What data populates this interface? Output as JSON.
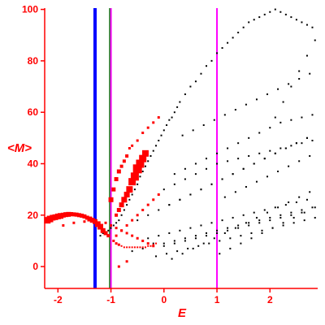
{
  "chart_data": {
    "type": "scatter",
    "xlabel": "E",
    "ylabel": "<M>",
    "xlim": [
      -2.25,
      2.9
    ],
    "ylim": [
      -8.5,
      100.5
    ],
    "x_ticks": [
      -2,
      -1,
      0,
      1,
      2
    ],
    "y_ticks": [
      0,
      20,
      40,
      60,
      80,
      100
    ],
    "grid": false,
    "colors": {
      "axes": "#ff0000",
      "black_points": "#000000",
      "red_markers": "#ff0000",
      "blue_line": "#0000ff",
      "green_line": "#008000",
      "magenta_line": "#ff00ff"
    },
    "vertical_lines": [
      {
        "x": -1.3,
        "color": "#0000ff"
      },
      {
        "x": -1.02,
        "color": "#008000"
      },
      {
        "x": -1.0,
        "color": "#ff00ff"
      },
      {
        "x": 1.0,
        "color": "#ff00ff"
      }
    ],
    "series": [
      {
        "marker": "small black dot",
        "x": [
          -1.2,
          -1.15,
          -1.05,
          -1.0,
          -0.95,
          -0.9,
          -0.85,
          -0.8,
          -0.75,
          -0.7,
          -0.65,
          -0.6,
          -0.55,
          -0.5,
          -0.45,
          -0.4,
          -0.35,
          -0.3,
          -0.25,
          -0.2,
          -0.15,
          -0.1,
          -0.05,
          0.0,
          0.05,
          0.1,
          0.15,
          0.2,
          0.25,
          0.3,
          0.4,
          0.5,
          0.6,
          0.7,
          0.8,
          0.9,
          1.0,
          1.1,
          1.2,
          1.3,
          1.4,
          1.5,
          1.6,
          1.7,
          1.8,
          1.9,
          2.0,
          2.1,
          2.2,
          2.3,
          2.4,
          2.5,
          2.6,
          2.7,
          2.8,
          -0.3,
          -0.1,
          0.1,
          0.3,
          0.5,
          0.7,
          0.9,
          1.1,
          1.3,
          1.5,
          1.7,
          1.9,
          2.1,
          2.3,
          2.5,
          2.7,
          0.0,
          0.2,
          0.4,
          0.6,
          0.8,
          1.0,
          1.2,
          1.4,
          1.6,
          1.8,
          2.0,
          2.2,
          2.4,
          2.6,
          2.8,
          0.2,
          0.4,
          0.6,
          0.8,
          1.0,
          1.2,
          1.4,
          1.6,
          1.8,
          2.0,
          2.2,
          2.4,
          2.6,
          2.8,
          -0.5,
          -0.3,
          -0.1,
          0.1,
          0.3,
          0.5,
          0.7,
          0.9,
          1.1,
          1.3,
          1.5,
          1.7,
          1.9,
          2.1,
          2.3,
          2.5,
          2.7,
          -0.2,
          0.0,
          0.2,
          0.4,
          0.6,
          0.8,
          1.0,
          1.2,
          1.4,
          1.6,
          1.8,
          2.0,
          2.2,
          2.4,
          2.6,
          0.1,
          0.3,
          0.5,
          0.7,
          0.9,
          1.1,
          1.3,
          1.5,
          1.7,
          1.9,
          2.1,
          2.3,
          2.5,
          2.7,
          -0.6,
          -0.4,
          -0.2,
          0.0,
          0.2,
          0.4,
          0.6,
          0.8,
          1.0,
          1.2,
          1.4,
          1.6,
          1.8,
          2.0,
          2.2,
          2.4,
          2.6,
          2.8,
          1.05,
          1.25,
          1.45,
          1.65,
          1.85,
          2.05,
          2.25,
          2.45,
          2.65,
          2.85,
          1.15,
          1.35,
          1.55,
          1.75,
          1.95,
          2.15,
          2.35,
          2.55,
          2.75,
          0.35,
          0.55,
          0.75,
          0.95,
          1.15,
          1.35,
          1.55,
          1.75,
          1.95,
          2.15,
          2.35,
          2.55,
          2.75,
          -0.15,
          0.05,
          0.25,
          0.45,
          0.65,
          0.85,
          1.05,
          1.25,
          1.45,
          1.65,
          1.85,
          2.05,
          2.25,
          2.45,
          2.65,
          2.85,
          0.15,
          0.35,
          0.55,
          0.75,
          0.95,
          1.15,
          1.35,
          1.55,
          1.75,
          1.95,
          2.15,
          2.35,
          2.55,
          2.75,
          2.85,
          2.7,
          2.55,
          2.4,
          2.25,
          2.1
        ],
        "y": [
          12,
          13,
          14,
          15,
          16,
          17,
          18,
          20,
          22,
          24,
          26,
          28,
          30,
          32,
          35,
          37,
          39,
          41,
          43,
          45,
          47,
          49,
          51,
          53,
          55,
          57,
          58,
          60,
          62,
          64,
          67,
          70,
          72,
          75,
          78,
          80,
          83,
          85,
          87,
          89,
          91,
          93,
          95,
          96,
          97,
          98,
          99,
          100,
          99,
          98,
          97,
          96,
          95,
          94,
          93,
          11,
          12,
          13,
          14,
          15,
          16,
          17,
          18,
          19,
          20,
          21,
          22,
          23,
          24,
          25,
          26,
          30,
          32,
          34,
          36,
          38,
          40,
          41,
          42,
          43,
          44,
          45,
          46,
          47,
          48,
          49,
          36,
          38,
          40,
          42,
          44,
          46,
          48,
          50,
          52,
          54,
          56,
          57,
          58,
          59,
          18,
          20,
          22,
          24,
          26,
          28,
          30,
          32,
          34,
          36,
          38,
          40,
          42,
          44,
          46,
          48,
          50,
          9,
          8,
          9,
          10,
          11,
          12,
          13,
          14,
          15,
          16,
          17,
          18,
          19,
          20,
          21,
          24,
          26,
          28,
          30,
          32,
          34,
          36,
          38,
          40,
          42,
          44,
          46,
          48,
          50,
          6,
          7,
          8,
          9,
          10,
          11,
          12,
          13,
          14,
          15,
          16,
          17,
          18,
          19,
          20,
          21,
          22,
          23,
          5,
          7,
          9,
          11,
          13,
          15,
          17,
          19,
          21,
          23,
          27,
          29,
          31,
          33,
          35,
          37,
          39,
          41,
          43,
          51,
          53,
          55,
          57,
          59,
          61,
          63,
          65,
          67,
          69,
          71,
          73,
          75,
          4,
          5,
          6,
          7,
          8,
          9,
          10,
          11,
          12,
          13,
          14,
          15,
          16,
          17,
          18,
          19,
          3,
          5,
          7,
          9,
          11,
          13,
          15,
          17,
          19,
          21,
          23,
          25,
          27,
          29,
          88,
          82,
          76,
          70,
          64,
          58
        ]
      },
      {
        "marker": "red square (size varies)",
        "x": [
          -2.2,
          -2.15,
          -2.1,
          -2.05,
          -2.0,
          -1.95,
          -1.9,
          -1.85,
          -1.8,
          -1.75,
          -1.7,
          -1.65,
          -1.6,
          -1.55,
          -1.5,
          -1.45,
          -1.4,
          -1.35,
          -1.3,
          -1.25,
          -1.2,
          -1.15,
          -1.1,
          -1.05,
          -0.95,
          -0.9,
          -0.85,
          -0.8,
          -0.75,
          -0.7,
          -0.65,
          -0.6,
          -0.55,
          -0.5,
          -0.45,
          -0.4,
          -0.35,
          -0.3,
          -0.25,
          -0.2,
          -0.15,
          -1.0,
          -0.95,
          -0.9,
          -0.85,
          -0.8,
          -0.75,
          -0.7,
          -0.65,
          -0.6,
          -0.5,
          -0.4,
          -0.3,
          -0.2,
          -0.1,
          -0.9,
          -0.8,
          -0.7,
          -0.6,
          -0.5,
          -0.4,
          -0.3,
          -0.2,
          -0.1,
          -0.9,
          -0.85,
          -0.8,
          -0.75,
          -0.7,
          -0.65,
          -0.6,
          -0.55,
          -0.5,
          -0.45,
          -0.4,
          -0.35,
          -1.9,
          -1.7,
          -1.5,
          -1.3,
          -1.1,
          -1.0,
          -0.9,
          -0.8,
          -0.7,
          -0.6,
          -0.5,
          -0.4,
          -0.3,
          -0.2,
          -0.85,
          -0.7
        ],
        "y": [
          18,
          18.5,
          19,
          19.2,
          19.5,
          19.7,
          20,
          20.2,
          20.3,
          20.4,
          20.3,
          20.2,
          20,
          19.8,
          19.5,
          19,
          18.5,
          18,
          17.5,
          16.5,
          15.5,
          14,
          13,
          12,
          10,
          9,
          8.5,
          8,
          7.5,
          7.5,
          7.5,
          7.5,
          7.5,
          7.5,
          7.5,
          7.5,
          7.5,
          8,
          8,
          8.5,
          9,
          26,
          30,
          34,
          37,
          39,
          41,
          43,
          46,
          47,
          49,
          52,
          54,
          56,
          58,
          12,
          14,
          16,
          18,
          20,
          22,
          24,
          26,
          28,
          20,
          22,
          24,
          26,
          28,
          30,
          33,
          35,
          38,
          40,
          42,
          44,
          16,
          17,
          17.5,
          17.5,
          17,
          16,
          15,
          14,
          13,
          12,
          11,
          10,
          9,
          8,
          0,
          2
        ],
        "size": [
          8,
          8,
          7,
          7,
          7,
          7,
          6,
          6,
          6,
          5,
          5,
          5,
          5,
          5,
          5,
          5,
          6,
          6,
          6,
          7,
          7,
          6,
          5,
          4,
          3,
          3,
          3,
          2,
          2,
          2,
          2,
          2,
          2,
          2,
          2,
          2,
          2,
          2,
          2,
          2,
          2,
          6,
          5,
          5,
          5,
          4,
          4,
          4,
          3,
          3,
          3,
          3,
          3,
          3,
          3,
          3,
          3,
          3,
          3,
          3,
          3,
          3,
          3,
          3,
          4,
          5,
          6,
          7,
          7,
          8,
          9,
          10,
          11,
          10,
          9,
          8,
          3,
          3,
          3,
          3,
          3,
          3,
          3,
          3,
          3,
          3,
          3,
          3,
          3,
          3,
          3,
          3
        ]
      }
    ]
  }
}
